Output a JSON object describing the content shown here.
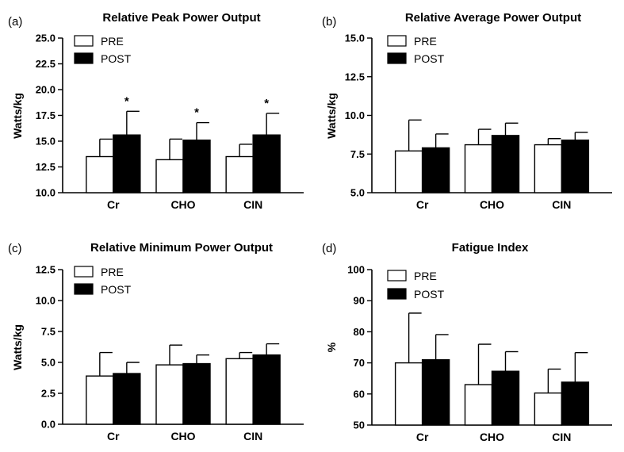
{
  "legend": {
    "pre": "PRE",
    "post": "POST"
  },
  "colors": {
    "pre": "#ffffff",
    "post": "#000000",
    "stroke": "#000000"
  },
  "chart_data": [
    {
      "panel": "(a)",
      "type": "bar",
      "title": "Relative Peak Power Output",
      "ylabel": "Watts/kg",
      "xlabel": "",
      "ylim": [
        10.0,
        25.0
      ],
      "yticks": [
        "10.0",
        "12.5",
        "15.0",
        "17.5",
        "20.0",
        "22.5",
        "25.0"
      ],
      "categories": [
        "Cr",
        "CHO",
        "CIN"
      ],
      "series": [
        {
          "name": "PRE",
          "values": [
            13.5,
            13.2,
            13.5
          ],
          "errors": [
            1.7,
            2.0,
            1.2
          ]
        },
        {
          "name": "POST",
          "values": [
            15.6,
            15.1,
            15.6
          ],
          "errors": [
            2.3,
            1.7,
            2.1
          ]
        }
      ],
      "annotations": [
        "*",
        "*",
        "*"
      ]
    },
    {
      "panel": "(b)",
      "type": "bar",
      "title": "Relative Average Power Output",
      "ylabel": "Watts/kg",
      "xlabel": "",
      "ylim": [
        5.0,
        15.0
      ],
      "yticks": [
        "5.0",
        "7.5",
        "10.0",
        "12.5",
        "15.0"
      ],
      "categories": [
        "Cr",
        "CHO",
        "CIN"
      ],
      "series": [
        {
          "name": "PRE",
          "values": [
            7.7,
            8.1,
            8.1
          ],
          "errors": [
            2.0,
            1.0,
            0.4
          ]
        },
        {
          "name": "POST",
          "values": [
            7.9,
            8.7,
            8.4
          ],
          "errors": [
            0.9,
            0.8,
            0.5
          ]
        }
      ],
      "annotations": []
    },
    {
      "panel": "(c)",
      "type": "bar",
      "title": "Relative Minimum Power Output",
      "ylabel": "Watts/kg",
      "xlabel": "",
      "ylim": [
        0.0,
        12.5
      ],
      "yticks": [
        "0.0",
        "2.5",
        "5.0",
        "7.5",
        "10.0",
        "12.5"
      ],
      "categories": [
        "Cr",
        "CHO",
        "CIN"
      ],
      "series": [
        {
          "name": "PRE",
          "values": [
            3.9,
            4.8,
            5.3
          ],
          "errors": [
            1.9,
            1.6,
            0.5
          ]
        },
        {
          "name": "POST",
          "values": [
            4.1,
            4.9,
            5.6
          ],
          "errors": [
            0.9,
            0.7,
            0.9
          ]
        }
      ],
      "annotations": []
    },
    {
      "panel": "(d)",
      "type": "bar",
      "title": "Fatigue Index",
      "ylabel": "%",
      "xlabel": "",
      "ylim": [
        50,
        100
      ],
      "yticks": [
        "50",
        "60",
        "70",
        "80",
        "90",
        "100"
      ],
      "categories": [
        "Cr",
        "CHO",
        "CIN"
      ],
      "series": [
        {
          "name": "PRE",
          "values": [
            70,
            63,
            60.3
          ],
          "errors": [
            16,
            13,
            7.7
          ]
        },
        {
          "name": "POST",
          "values": [
            71,
            67.3,
            63.8
          ],
          "errors": [
            8.1,
            6.3,
            9.5
          ]
        }
      ],
      "annotations": []
    }
  ]
}
